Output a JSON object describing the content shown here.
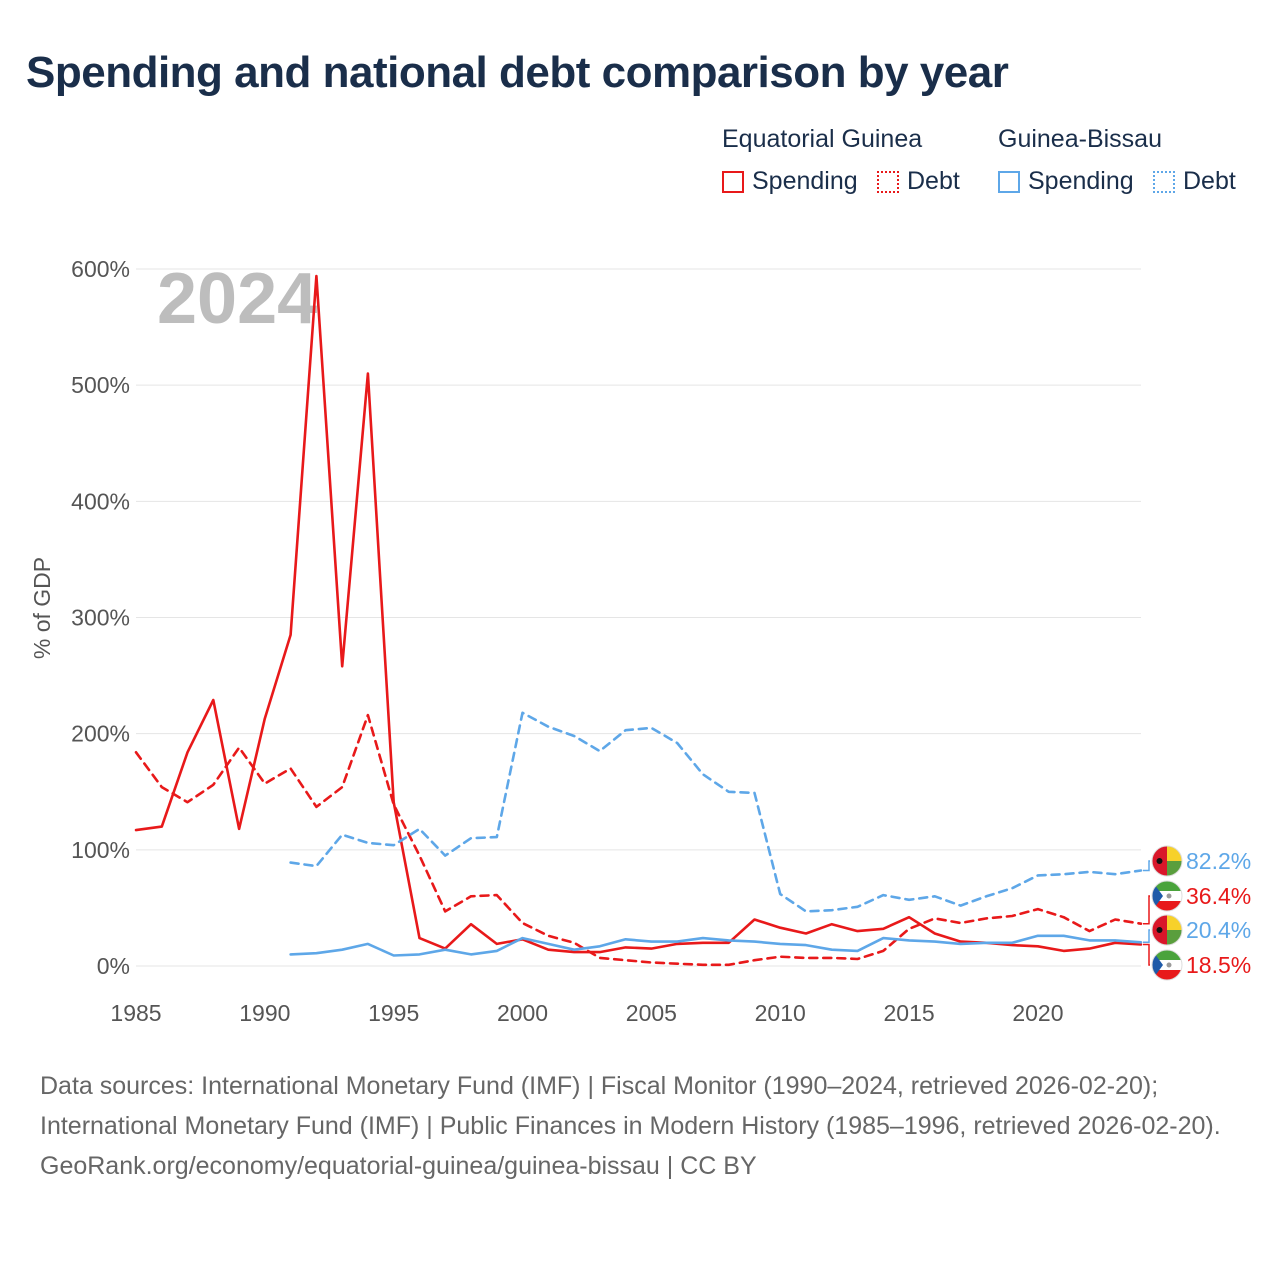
{
  "title": "Spending and national debt comparison by year",
  "legend": {
    "groups": [
      {
        "country": "Equatorial Guinea",
        "spending_label": "Spending",
        "debt_label": "Debt",
        "color": "#e8191a"
      },
      {
        "country": "Guinea-Bissau",
        "spending_label": "Spending",
        "debt_label": "Debt",
        "color": "#5ea7e8"
      }
    ]
  },
  "footer": {
    "sources": "Data sources: International Monetary Fund (IMF) | Fiscal Monitor (1990–2024, retrieved 2026-02-20); International Monetary Fund (IMF) | Public Finances in Modern History (1985–1996, retrieved 2026-02-20).",
    "credit": "GeoRank.org/economy/equatorial-guinea/guinea-bissau | CC BY"
  },
  "chart_data": {
    "type": "line",
    "year_label": "2024",
    "ylabel": "% of GDP",
    "xlim": [
      1985,
      2024
    ],
    "ylim": [
      0,
      600
    ],
    "x_ticks": [
      1985,
      1990,
      1995,
      2000,
      2005,
      2010,
      2015,
      2020
    ],
    "x_tick_labels": [
      "1985",
      "1990",
      "1995",
      "2000",
      "2005",
      "2010",
      "2015",
      "2020"
    ],
    "y_ticks": [
      0,
      100,
      200,
      300,
      400,
      500,
      600
    ],
    "y_tick_labels": [
      "0%",
      "100%",
      "200%",
      "300%",
      "400%",
      "500%",
      "600%"
    ],
    "grid": true,
    "series": [
      {
        "name": "Equatorial Guinea Spending",
        "color": "#e8191a",
        "dashed": false,
        "x": [
          1985,
          1986,
          1987,
          1988,
          1989,
          1990,
          1991,
          1992,
          1993,
          1994,
          1995,
          1996,
          1997,
          1998,
          1999,
          2000,
          2001,
          2002,
          2003,
          2004,
          2005,
          2006,
          2007,
          2008,
          2009,
          2010,
          2011,
          2012,
          2013,
          2014,
          2015,
          2016,
          2017,
          2018,
          2019,
          2020,
          2021,
          2022,
          2023,
          2024
        ],
        "values": [
          117,
          120,
          184,
          229,
          118,
          213,
          285,
          594,
          258,
          510,
          141,
          24,
          15,
          36,
          19,
          23,
          14,
          12,
          12,
          16,
          15,
          19,
          20,
          20,
          40,
          33,
          28,
          36,
          30,
          32,
          42,
          28,
          21,
          20,
          18,
          17,
          13,
          15,
          20,
          18.5
        ],
        "end_label": "18.5%"
      },
      {
        "name": "Equatorial Guinea Debt",
        "color": "#e8191a",
        "dashed": true,
        "x": [
          1985,
          1986,
          1987,
          1988,
          1989,
          1990,
          1991,
          1992,
          1993,
          1994,
          1995,
          1996,
          1997,
          1998,
          1999,
          2000,
          2001,
          2002,
          2003,
          2004,
          2005,
          2006,
          2007,
          2008,
          2009,
          2010,
          2011,
          2012,
          2013,
          2014,
          2015,
          2016,
          2017,
          2018,
          2019,
          2020,
          2021,
          2022,
          2023,
          2024
        ],
        "values": [
          184,
          154,
          141,
          156,
          188,
          157,
          170,
          137,
          154,
          216,
          139,
          95,
          47,
          60,
          61,
          37,
          26,
          20,
          7,
          5,
          3,
          2,
          1,
          1,
          5,
          8,
          7,
          7,
          6,
          13,
          32,
          41,
          37,
          41,
          43,
          49,
          42,
          30,
          40,
          36.4
        ],
        "end_label": "36.4%"
      },
      {
        "name": "Guinea-Bissau Spending",
        "color": "#5ea7e8",
        "dashed": false,
        "x": [
          1991,
          1992,
          1993,
          1994,
          1995,
          1996,
          1997,
          1998,
          1999,
          2000,
          2001,
          2002,
          2003,
          2004,
          2005,
          2006,
          2007,
          2008,
          2009,
          2010,
          2011,
          2012,
          2013,
          2014,
          2015,
          2016,
          2017,
          2018,
          2019,
          2020,
          2021,
          2022,
          2023,
          2024
        ],
        "values": [
          10,
          11,
          14,
          19,
          9,
          10,
          14,
          10,
          13,
          24,
          19,
          14,
          17,
          23,
          21,
          21,
          24,
          22,
          21,
          19,
          18,
          14,
          13,
          24,
          22,
          21,
          19,
          20,
          20,
          26,
          26,
          22,
          22,
          20.4
        ],
        "end_label": "20.4%"
      },
      {
        "name": "Guinea-Bissau Debt",
        "color": "#5ea7e8",
        "dashed": true,
        "x": [
          1991,
          1992,
          1993,
          1994,
          1995,
          1996,
          1997,
          1998,
          1999,
          2000,
          2001,
          2002,
          2003,
          2004,
          2005,
          2006,
          2007,
          2008,
          2009,
          2010,
          2011,
          2012,
          2013,
          2014,
          2015,
          2016,
          2017,
          2018,
          2019,
          2020,
          2021,
          2022,
          2023,
          2024
        ],
        "values": [
          89,
          86,
          113,
          106,
          104,
          118,
          95,
          110,
          111,
          218,
          206,
          198,
          185,
          203,
          205,
          192,
          165,
          150,
          149,
          62,
          47,
          48,
          51,
          61,
          57,
          60,
          52,
          60,
          67,
          78,
          79,
          81,
          79,
          82.2
        ],
        "end_label": "82.2%"
      }
    ]
  }
}
